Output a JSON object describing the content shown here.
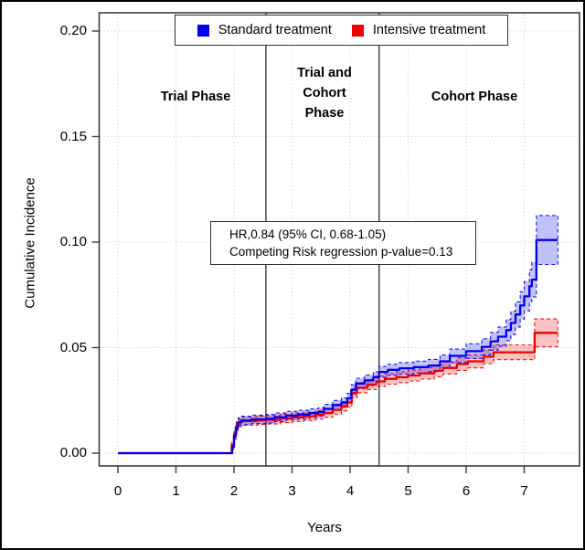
{
  "accent_colors": {
    "standard": "#0000f0",
    "intensive": "#ee0000",
    "frame": "#3d3d3d",
    "grid": "#d8d8d8",
    "phase_line": "#3a3a3a"
  },
  "legend": {
    "entries": [
      {
        "label": "Standard treatment",
        "color": "#0000f0"
      },
      {
        "label": "Intensive treatment",
        "color": "#ee0000"
      }
    ]
  },
  "phases": {
    "trial": {
      "label": "Trial Phase"
    },
    "trial_and_cohort": {
      "label": "Trial and\nCohort\nPhase"
    },
    "cohort": {
      "label": "Cohort Phase"
    }
  },
  "stats_box": {
    "line1": "HR,0.84 (95% CI, 0.68-1.05)",
    "line2": "Competing Risk regression p-value=0.13"
  },
  "chart_data": {
    "type": "line",
    "subtype": "step-cumulative-incidence-with-ci-bands",
    "title": "",
    "xlabel": "Years",
    "ylabel": "Cumulative Incidence",
    "xlim": [
      -0.35,
      7.95
    ],
    "ylim": [
      -0.006,
      0.209
    ],
    "grid": "dotted at every tick",
    "legend_position": "top-center-inside",
    "x_ticks": {
      "values": [
        0,
        1,
        2,
        3,
        4,
        5,
        6,
        7
      ],
      "labels": [
        "0",
        "1",
        "2",
        "3",
        "4",
        "5",
        "6",
        "7"
      ]
    },
    "y_ticks": {
      "values": [
        0.0,
        0.05,
        0.1,
        0.15,
        0.2
      ],
      "labels": [
        "0.00",
        "0.05",
        "0.10",
        "0.15",
        "0.20"
      ]
    },
    "phase_line_x": [
      2.55,
      4.5
    ],
    "point_format": "[year, cumulative_incidence, ci_halfwidth]",
    "series": [
      {
        "name": "Intensive treatment",
        "color": "#ee0000",
        "points": [
          [
            0,
            0,
            0
          ],
          [
            1.93,
            0,
            0
          ],
          [
            1.96,
            0.004,
            0.0012
          ],
          [
            2.0,
            0.009,
            0.0016
          ],
          [
            2.04,
            0.013,
            0.0019
          ],
          [
            2.08,
            0.0148,
            0.002
          ],
          [
            2.15,
            0.0152,
            0.002
          ],
          [
            2.4,
            0.0156,
            0.002
          ],
          [
            2.55,
            0.0158,
            0.002
          ],
          [
            2.8,
            0.0165,
            0.002
          ],
          [
            3.0,
            0.017,
            0.002
          ],
          [
            3.2,
            0.0175,
            0.002
          ],
          [
            3.4,
            0.0182,
            0.002
          ],
          [
            3.55,
            0.019,
            0.002
          ],
          [
            3.7,
            0.0205,
            0.0021
          ],
          [
            3.85,
            0.0222,
            0.0022
          ],
          [
            3.95,
            0.024,
            0.0022
          ],
          [
            4.03,
            0.0285,
            0.0023
          ],
          [
            4.12,
            0.031,
            0.0024
          ],
          [
            4.3,
            0.0325,
            0.0024
          ],
          [
            4.45,
            0.034,
            0.0025
          ],
          [
            4.6,
            0.0352,
            0.0025
          ],
          [
            4.8,
            0.036,
            0.0026
          ],
          [
            5.0,
            0.0368,
            0.0026
          ],
          [
            5.2,
            0.0378,
            0.0027
          ],
          [
            5.45,
            0.039,
            0.0028
          ],
          [
            5.6,
            0.0404,
            0.0029
          ],
          [
            5.84,
            0.0422,
            0.003
          ],
          [
            6.03,
            0.0435,
            0.0031
          ],
          [
            6.3,
            0.0457,
            0.0033
          ],
          [
            6.47,
            0.0478,
            0.0035
          ],
          [
            7.17,
            0.0478,
            0.0035
          ],
          [
            7.18,
            0.057,
            0.0066
          ],
          [
            7.58,
            0.057,
            0.0066
          ]
        ]
      },
      {
        "name": "Standard treatment",
        "color": "#0000f0",
        "points": [
          [
            0,
            0,
            0
          ],
          [
            1.93,
            0,
            0
          ],
          [
            1.97,
            0.003,
            0.001
          ],
          [
            2.0,
            0.008,
            0.0015
          ],
          [
            2.03,
            0.012,
            0.0018
          ],
          [
            2.07,
            0.0145,
            0.002
          ],
          [
            2.12,
            0.0155,
            0.002
          ],
          [
            2.3,
            0.016,
            0.002
          ],
          [
            2.55,
            0.0163,
            0.002
          ],
          [
            2.7,
            0.017,
            0.002
          ],
          [
            2.9,
            0.0178,
            0.002
          ],
          [
            3.1,
            0.0183,
            0.002
          ],
          [
            3.3,
            0.019,
            0.002
          ],
          [
            3.45,
            0.0195,
            0.002
          ],
          [
            3.55,
            0.021,
            0.0021
          ],
          [
            3.7,
            0.0228,
            0.0022
          ],
          [
            3.85,
            0.024,
            0.0022
          ],
          [
            3.95,
            0.026,
            0.0023
          ],
          [
            4.02,
            0.03,
            0.0024
          ],
          [
            4.1,
            0.033,
            0.0025
          ],
          [
            4.25,
            0.0345,
            0.0025
          ],
          [
            4.4,
            0.036,
            0.0025
          ],
          [
            4.5,
            0.0385,
            0.0026
          ],
          [
            4.65,
            0.0395,
            0.0026
          ],
          [
            4.85,
            0.0402,
            0.0027
          ],
          [
            5.1,
            0.0408,
            0.0028
          ],
          [
            5.35,
            0.0415,
            0.0029
          ],
          [
            5.55,
            0.0435,
            0.003
          ],
          [
            5.72,
            0.0461,
            0.0032
          ],
          [
            6.0,
            0.0483,
            0.0035
          ],
          [
            6.27,
            0.0504,
            0.0038
          ],
          [
            6.42,
            0.053,
            0.0042
          ],
          [
            6.55,
            0.0552,
            0.0046
          ],
          [
            6.69,
            0.0583,
            0.005
          ],
          [
            6.77,
            0.0617,
            0.0055
          ],
          [
            6.85,
            0.0657,
            0.006
          ],
          [
            6.93,
            0.07,
            0.0065
          ],
          [
            7.0,
            0.0743,
            0.007
          ],
          [
            7.09,
            0.0791,
            0.0078
          ],
          [
            7.13,
            0.0822,
            0.0082
          ],
          [
            7.21,
            0.101,
            0.0116
          ],
          [
            7.58,
            0.101,
            0.0116
          ]
        ]
      }
    ],
    "annotations": [
      "HR,0.84 (95% CI, 0.68-1.05)",
      "Competing Risk regression p-value=0.13"
    ]
  }
}
